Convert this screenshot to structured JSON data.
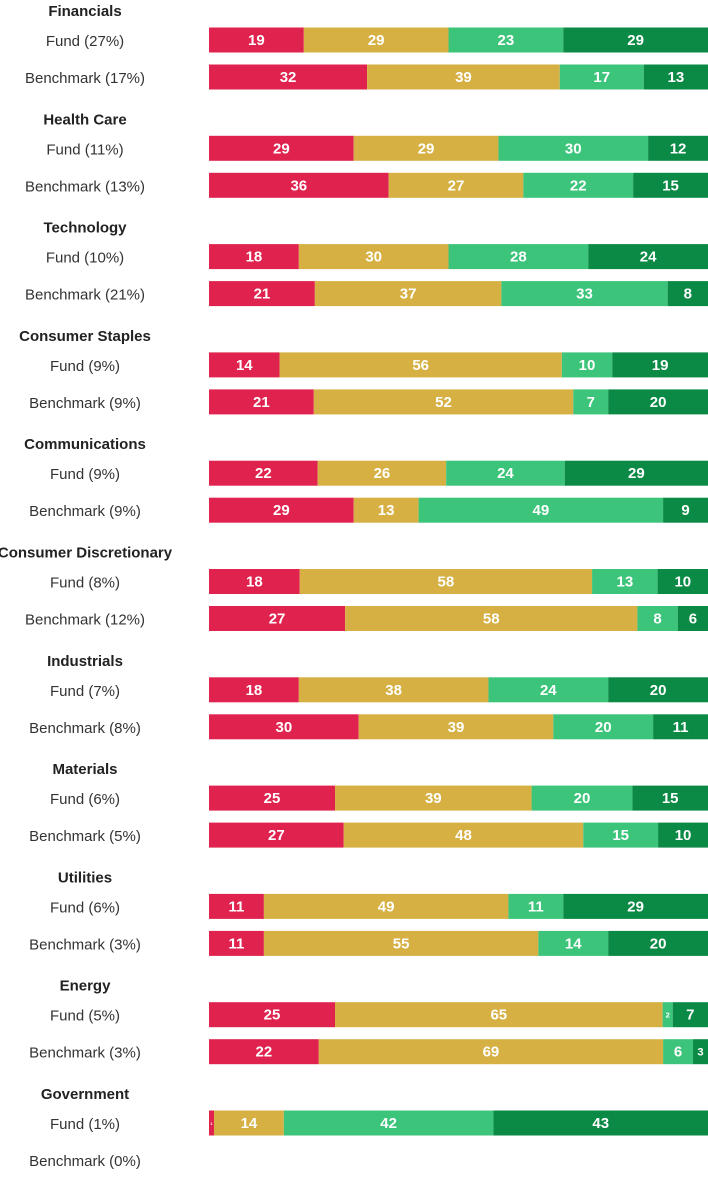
{
  "chart_data": {
    "type": "bar",
    "stacked": true,
    "colors": [
      "#e0234e",
      "#d6b043",
      "#3cc47a",
      "#0a8a45"
    ],
    "groups": [
      {
        "name": "Financials",
        "rows": [
          {
            "label": "Fund (27%)",
            "values": [
              19,
              29,
              23,
              29
            ]
          },
          {
            "label": "Benchmark (17%)",
            "values": [
              32,
              39,
              17,
              13
            ]
          }
        ]
      },
      {
        "name": "Health Care",
        "rows": [
          {
            "label": "Fund (11%)",
            "values": [
              29,
              29,
              30,
              12
            ]
          },
          {
            "label": "Benchmark (13%)",
            "values": [
              36,
              27,
              22,
              15
            ]
          }
        ]
      },
      {
        "name": "Technology",
        "rows": [
          {
            "label": "Fund (10%)",
            "values": [
              18,
              30,
              28,
              24
            ]
          },
          {
            "label": "Benchmark (21%)",
            "values": [
              21,
              37,
              33,
              8
            ]
          }
        ]
      },
      {
        "name": "Consumer Staples",
        "rows": [
          {
            "label": "Fund (9%)",
            "values": [
              14,
              56,
              10,
              19
            ]
          },
          {
            "label": "Benchmark (9%)",
            "values": [
              21,
              52,
              7,
              20
            ]
          }
        ]
      },
      {
        "name": "Communications",
        "rows": [
          {
            "label": "Fund (9%)",
            "values": [
              22,
              26,
              24,
              29
            ]
          },
          {
            "label": "Benchmark (9%)",
            "values": [
              29,
              13,
              49,
              9
            ]
          }
        ]
      },
      {
        "name": "Consumer Discretionary",
        "rows": [
          {
            "label": "Fund (8%)",
            "values": [
              18,
              58,
              13,
              10
            ]
          },
          {
            "label": "Benchmark (12%)",
            "values": [
              27,
              58,
              8,
              6
            ]
          }
        ]
      },
      {
        "name": "Industrials",
        "rows": [
          {
            "label": "Fund (7%)",
            "values": [
              18,
              38,
              24,
              20
            ]
          },
          {
            "label": "Benchmark (8%)",
            "values": [
              30,
              39,
              20,
              11
            ]
          }
        ]
      },
      {
        "name": "Materials",
        "rows": [
          {
            "label": "Fund (6%)",
            "values": [
              25,
              39,
              20,
              15
            ]
          },
          {
            "label": "Benchmark (5%)",
            "values": [
              27,
              48,
              15,
              10
            ]
          }
        ]
      },
      {
        "name": "Utilities",
        "rows": [
          {
            "label": "Fund (6%)",
            "values": [
              11,
              49,
              11,
              29
            ]
          },
          {
            "label": "Benchmark (3%)",
            "values": [
              11,
              55,
              14,
              20
            ]
          }
        ]
      },
      {
        "name": "Energy",
        "rows": [
          {
            "label": "Fund (5%)",
            "values": [
              25,
              65,
              2,
              7
            ]
          },
          {
            "label": "Benchmark (3%)",
            "values": [
              22,
              69,
              6,
              3
            ]
          }
        ]
      },
      {
        "name": "Government",
        "rows": [
          {
            "label": "Fund (1%)",
            "values": [
              1,
              14,
              42,
              43
            ]
          },
          {
            "label": "Benchmark (0%)",
            "values": [
              null,
              null,
              null,
              null
            ]
          }
        ]
      }
    ]
  }
}
